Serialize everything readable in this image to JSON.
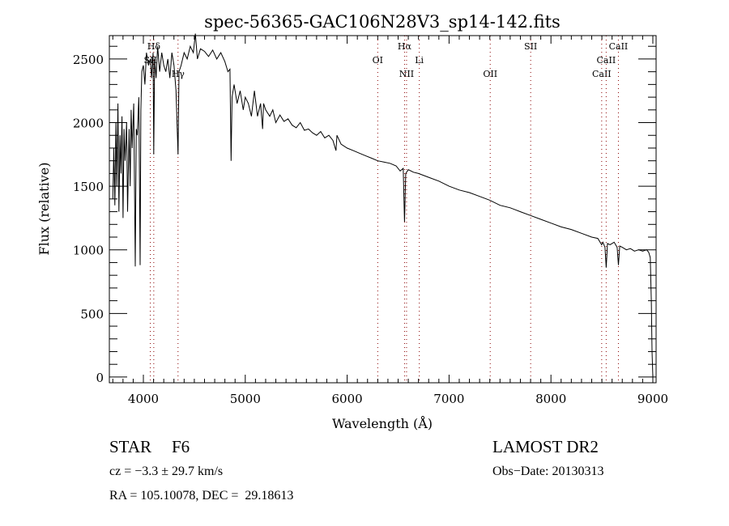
{
  "chart_data": {
    "type": "line",
    "title": "spec-56365-GAC106N28V3_sp14-142.fits",
    "xlabel": "Wavelength (Å)",
    "ylabel": "Flux (relative)",
    "xlim": [
      3666,
      9032
    ],
    "ylim": [
      -45,
      2684
    ],
    "xticks": [
      4000,
      5000,
      6000,
      7000,
      8000,
      9000
    ],
    "yticks": [
      0,
      500,
      1000,
      1500,
      2000,
      2500
    ],
    "grid": false,
    "series": [
      {
        "name": "flux",
        "x": [
          3700,
          3710,
          3720,
          3730,
          3740,
          3750,
          3760,
          3770,
          3780,
          3790,
          3800,
          3810,
          3820,
          3835,
          3845,
          3860,
          3870,
          3880,
          3890,
          3905,
          3920,
          3930,
          3940,
          3955,
          3968,
          3975,
          3985,
          4000,
          4015,
          4030,
          4050,
          4068,
          4080,
          4095,
          4102,
          4110,
          4125,
          4140,
          4160,
          4180,
          4200,
          4220,
          4240,
          4260,
          4280,
          4300,
          4320,
          4340,
          4350,
          4370,
          4400,
          4430,
          4460,
          4490,
          4510,
          4530,
          4560,
          4600,
          4640,
          4680,
          4720,
          4760,
          4800,
          4830,
          4850,
          4861,
          4870,
          4890,
          4920,
          4950,
          4980,
          5000,
          5030,
          5060,
          5090,
          5120,
          5150,
          5170,
          5180,
          5200,
          5240,
          5270,
          5300,
          5340,
          5380,
          5420,
          5460,
          5500,
          5540,
          5580,
          5620,
          5660,
          5700,
          5740,
          5780,
          5820,
          5860,
          5890,
          5900,
          5940,
          6000,
          6060,
          6120,
          6180,
          6240,
          6300,
          6360,
          6420,
          6480,
          6520,
          6550,
          6563,
          6575,
          6600,
          6650,
          6700,
          6800,
          6900,
          7000,
          7100,
          7200,
          7300,
          7400,
          7500,
          7600,
          7700,
          7800,
          7900,
          8000,
          8100,
          8200,
          8300,
          8400,
          8460,
          8498,
          8510,
          8530,
          8542,
          8555,
          8580,
          8620,
          8650,
          8662,
          8675,
          8700,
          8740,
          8780,
          8820,
          8860,
          8900,
          8940,
          8960,
          8975,
          8985,
          8992,
          9000
        ],
        "y": [
          1400,
          1800,
          1350,
          2000,
          1500,
          2150,
          1300,
          1900,
          1600,
          2050,
          1250,
          1950,
          1700,
          2000,
          1300,
          1950,
          1500,
          2100,
          1800,
          2150,
          870,
          1950,
          1900,
          2200,
          880,
          2100,
          2400,
          2450,
          2300,
          2550,
          2450,
          2500,
          2350,
          2550,
          1750,
          2500,
          2350,
          2600,
          2400,
          2550,
          2450,
          2400,
          2500,
          2350,
          2550,
          2450,
          2250,
          1750,
          2400,
          2450,
          2550,
          2500,
          2600,
          2550,
          2700,
          2500,
          2580,
          2560,
          2520,
          2570,
          2500,
          2550,
          2480,
          2400,
          2420,
          1700,
          2200,
          2300,
          2150,
          2250,
          2100,
          2200,
          2150,
          2050,
          2250,
          2050,
          2150,
          1950,
          2150,
          2100,
          2050,
          2100,
          2000,
          2060,
          2010,
          2030,
          1980,
          1960,
          2000,
          1940,
          1950,
          1920,
          1900,
          1930,
          1880,
          1900,
          1860,
          1780,
          1900,
          1830,
          1800,
          1780,
          1760,
          1740,
          1720,
          1700,
          1690,
          1680,
          1660,
          1620,
          1640,
          1220,
          1600,
          1630,
          1610,
          1600,
          1570,
          1540,
          1500,
          1470,
          1450,
          1420,
          1390,
          1350,
          1330,
          1300,
          1270,
          1240,
          1210,
          1180,
          1160,
          1130,
          1100,
          1090,
          1040,
          1060,
          1020,
          860,
          1050,
          1040,
          1060,
          1020,
          880,
          1030,
          1020,
          1000,
          1010,
          990,
          1000,
          990,
          1000,
          980,
          940,
          600,
          200,
          0
        ]
      }
    ],
    "line_markers": [
      {
        "label": "Hδ",
        "x": 4102,
        "row": 0
      },
      {
        "label": "SII",
        "x": 4068,
        "row": 1
      },
      {
        "label": "Hγ",
        "x": 4340,
        "row": 2
      },
      {
        "label": "OI",
        "x": 6300,
        "row": 1
      },
      {
        "label": "Hα",
        "x": 6563,
        "row": 0
      },
      {
        "label": "NII",
        "x": 6583,
        "row": 2
      },
      {
        "label": "Li",
        "x": 6708,
        "row": 1
      },
      {
        "label": "OII",
        "x": 7404,
        "row": 2
      },
      {
        "label": "SII",
        "x": 7801,
        "row": 0
      },
      {
        "label": "CaII",
        "x": 8498,
        "row": 2
      },
      {
        "label": "CaII",
        "x": 8542,
        "row": 1
      },
      {
        "label": "CaII",
        "x": 8662,
        "row": 0
      }
    ],
    "colors": {
      "line": "#000000",
      "marker": "#8b0000"
    }
  },
  "info": {
    "object_class": "STAR",
    "subclass": "F6",
    "survey": "LAMOST DR2",
    "cz": "cz = −3.3 ± 29.7 km/s",
    "obs_date": "Obs−Date: 20130313",
    "coords": "RA = 105.10078, DEC =  29.18613"
  }
}
